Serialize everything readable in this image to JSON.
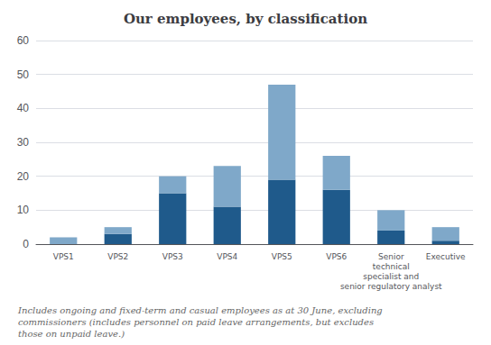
{
  "chart_data": {
    "type": "bar",
    "title": "Our employees, by classification",
    "categories": [
      "VPS1",
      "VPS2",
      "VPS3",
      "VPS4",
      "VPS5",
      "VPS6",
      "Senior\ntechnical\nspecialist and\nsenior regulatory analyst",
      "Executive"
    ],
    "series": [
      {
        "color": "#1f5a8b",
        "values": [
          0,
          3,
          15,
          11,
          19,
          16,
          4,
          1
        ]
      },
      {
        "color": "#7fa8c9",
        "values": [
          2,
          2,
          5,
          12,
          28,
          10,
          6,
          4
        ]
      }
    ],
    "stacked": true,
    "ylim": [
      0,
      60
    ],
    "yticks": [
      0,
      10,
      20,
      30,
      40,
      50,
      60
    ],
    "grid": true,
    "annotations": [
      "Includes ongoing and fixed-term and casual employees as at 30 June, excluding\ncommissioners (includes personnel on paid leave arrangements, but excludes\nthose on unpaid leave.)"
    ]
  }
}
